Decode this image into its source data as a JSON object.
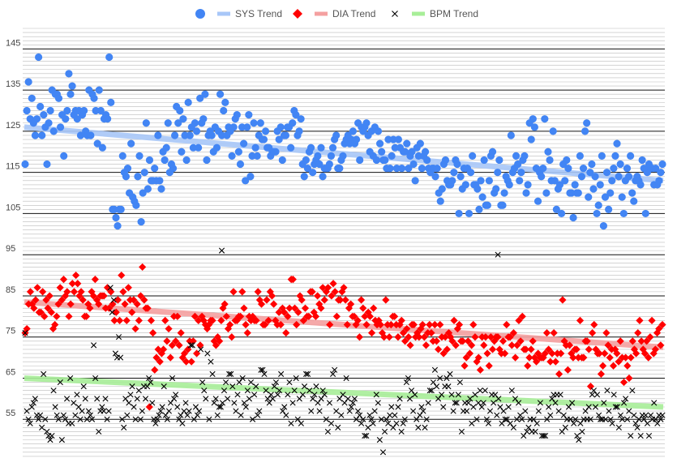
{
  "chart_data": {
    "type": "scatter",
    "title": "",
    "xlabel": "",
    "ylabel": "",
    "ylim": [
      45,
      150
    ],
    "y_ticks": [
      55,
      65,
      75,
      85,
      95,
      105,
      115,
      125,
      135,
      145
    ],
    "x_axis": "observation index (unlabeled)",
    "grid": "horizontal minor lines every 1 unit, major lines every 10 units",
    "legend_position": "top-center",
    "legend": [
      {
        "label": "SYS Trend",
        "marker": "circle",
        "marker_color": "#4285F4",
        "line_color": "#A8C7F8"
      },
      {
        "label": "DIA Trend",
        "marker": "diamond",
        "marker_color": "#FF0000",
        "line_color": "#F4A0A0"
      },
      {
        "label": "BPM Trend",
        "marker": "x",
        "marker_color": "#000000",
        "line_color": "#A8EE98"
      }
    ],
    "series": [
      {
        "name": "SYS",
        "marker": "circle",
        "color": "#4285F4",
        "trend": {
          "start": 126,
          "end": 113
        },
        "values": [
          117,
          130,
          137,
          128,
          133,
          127,
          124,
          128,
          143,
          131,
          124,
          129,
          126,
          117,
          127,
          130,
          135,
          125,
          134,
          134,
          133,
          126,
          129,
          119,
          128,
          130,
          139,
          134,
          136,
          129,
          130,
          128,
          130,
          124,
          129,
          130,
          125,
          124,
          135,
          124,
          134,
          133,
          130,
          122,
          135,
          130,
          121,
          128,
          129,
          128,
          143,
          132,
          106,
          106,
          104,
          102,
          106,
          106,
          119,
          115,
          114,
          116,
          110,
          122,
          109,
          108,
          107,
          114,
          119,
          103,
          110,
          115,
          127,
          111,
          118,
          113,
          113,
          116,
          113,
          124,
          113,
          111,
          120,
          118,
          121,
          127,
          115,
          117,
          116,
          124,
          131,
          127,
          130,
          120,
          128,
          124,
          118,
          132,
          124,
          126,
          121,
          127,
          125,
          121,
          133,
          127,
          128,
          134,
          118,
          124,
          125,
          124,
          120,
          126,
          121,
          125,
          134,
          124,
          130,
          132,
          124,
          126,
          125,
          119,
          126,
          128,
          129,
          120,
          117,
          126,
          122,
          113,
          126,
          129,
          114,
          119,
          127,
          121,
          119,
          124,
          127,
          123,
          123,
          125,
          121,
          121,
          119,
          120,
          120,
          120,
          125,
          123,
          126,
          118,
          124,
          124,
          126,
          126,
          121,
          127,
          130,
          129,
          124,
          125,
          128,
          117,
          114,
          118,
          116,
          120,
          121,
          115,
          117,
          118,
          119,
          117,
          121,
          114,
          116,
          116,
          116,
          117,
          119,
          121,
          123,
          124,
          116,
          116,
          118,
          119,
          122,
          123,
          124,
          122,
          123,
          125,
          122,
          123,
          127,
          118,
          126,
          125,
          126,
          127,
          124,
          120,
          125,
          119,
          126,
          118,
          125,
          122,
          120,
          118,
          118,
          116,
          123,
          116,
          119,
          123,
          121,
          116,
          123,
          121,
          116,
          120,
          120,
          122,
          116,
          119,
          120,
          117,
          113,
          121,
          119,
          122,
          116,
          119,
          120,
          118,
          116,
          115,
          116,
          116,
          114,
          116,
          110,
          108,
          111,
          117,
          118,
          113,
          112,
          112,
          113,
          115,
          118,
          117,
          105,
          114,
          111,
          116,
          112,
          116,
          105,
          115,
          119,
          112,
          112,
          111,
          106,
          113,
          109,
          118,
          107,
          107,
          113,
          119,
          120,
          110,
          111,
          115,
          118,
          107,
          107,
          110,
          114,
          113,
          112,
          124,
          115,
          116,
          119,
          117,
          113,
          115,
          118,
          119,
          110,
          112,
          127,
          123,
          128,
          126,
          116,
          108,
          115,
          114,
          116,
          128,
          110,
          120,
          118,
          113,
          125,
          113,
          106,
          111,
          112,
          105,
          117,
          113,
          118,
          116,
          110,
          110,
          104,
          112,
          110,
          110,
          119,
          114,
          116,
          125,
          127,
          109,
          115,
          117,
          111,
          114,
          105,
          107,
          112,
          119,
          102,
          109,
          115,
          106,
          110,
          113,
          116,
          119,
          122,
          114,
          117,
          109,
          105,
          113,
          116,
          114,
          119,
          110,
          108,
          113,
          114,
          113,
          112,
          118,
          116,
          105,
          115,
          117,
          116,
          116,
          112,
          116,
          112,
          113,
          115,
          117
        ]
      },
      {
        "name": "DIA",
        "marker": "diamond",
        "color": "#FF0000",
        "trend": {
          "start": 83.5,
          "end": 72.5
        },
        "values": [
          76,
          77,
          83,
          86,
          83,
          82,
          84,
          87,
          81,
          81,
          86,
          80,
          84,
          82,
          85,
          81,
          77,
          78,
          80,
          83,
          87,
          84,
          89,
          85,
          86,
          80,
          83,
          88,
          86,
          90,
          88,
          85,
          86,
          84,
          80,
          80,
          83,
          82,
          86,
          85,
          89,
          84,
          83,
          85,
          85,
          85,
          82,
          87,
          82,
          86,
          83,
          79,
          81,
          84,
          79,
          90,
          86,
          83,
          79,
          87,
          84,
          81,
          84,
          77,
          83,
          79,
          85,
          92,
          84,
          82,
          82,
          58,
          79,
          76,
          67,
          70,
          72,
          69,
          71,
          72,
          79,
          74,
          77,
          70,
          73,
          80,
          74,
          80,
          73,
          76,
          70,
          71,
          69,
          72,
          74,
          69,
          74,
          80,
          71,
          79,
          73,
          80,
          79,
          78,
          77,
          78,
          79,
          79,
          74,
          73,
          75,
          74,
          79,
          82,
          83,
          80,
          77,
          78,
          75,
          86,
          79,
          79,
          80,
          80,
          86,
          82,
          78,
          76,
          80,
          79,
          80,
          79,
          79,
          86,
          84,
          83,
          78,
          78,
          84,
          79,
          86,
          85,
          83,
          79,
          78,
          81,
          78,
          82,
          81,
          76,
          80,
          82,
          89,
          89,
          82,
          78,
          81,
          85,
          84,
          79,
          82,
          80,
          80,
          86,
          86,
          81,
          80,
          85,
          83,
          82,
          87,
          84,
          86,
          87,
          78,
          85,
          88,
          86,
          80,
          84,
          84,
          86,
          87,
          84,
          78,
          82,
          83,
          80,
          80,
          78,
          79,
          75,
          84,
          82,
          80,
          78,
          81,
          80,
          76,
          82,
          79,
          78,
          79,
          78,
          76,
          75,
          84,
          78,
          75,
          78,
          80,
          80,
          78,
          75,
          78,
          79,
          76,
          74,
          77,
          75,
          73,
          78,
          78,
          75,
          76,
          75,
          77,
          78,
          75,
          73,
          76,
          78,
          76,
          74,
          78,
          74,
          72,
          78,
          75,
          71,
          75,
          72,
          76,
          75,
          74,
          79,
          73,
          77,
          78,
          74,
          74,
          68,
          70,
          74,
          71,
          73,
          78,
          75,
          69,
          70,
          67,
          75,
          73,
          75,
          71,
          68,
          75,
          72,
          74,
          75,
          75,
          72,
          71,
          74,
          71,
          78,
          75,
          75,
          73,
          76,
          70,
          73,
          79,
          74,
          80,
          72,
          72,
          68,
          70,
          72,
          74,
          70,
          69,
          71,
          70,
          70,
          70,
          71,
          76,
          72,
          69,
          71,
          76,
          69,
          71,
          66,
          71,
          84,
          74,
          73,
          67,
          73,
          71,
          70,
          72,
          72,
          70,
          79,
          70,
          70,
          74,
          74,
          72,
          63,
          76,
          78,
          72,
          71,
          71,
          66,
          68,
          71,
          76,
          73,
          70,
          72,
          68,
          72,
          71,
          69,
          74,
          70,
          64,
          70,
          68,
          65,
          70,
          74,
          72,
          71,
          76,
          79,
          74,
          72,
          71,
          74,
          70,
          75,
          79,
          71,
          72,
          76,
          77,
          73,
          78
        ]
      },
      {
        "name": "BPM",
        "marker": "x",
        "color": "#000000",
        "trend": {
          "start": 65,
          "end": 58
        },
        "values": [
          76,
          57,
          55,
          54,
          58,
          59,
          60,
          56,
          55,
          56,
          53,
          66,
          55,
          52,
          51,
          50,
          51,
          62,
          58,
          56,
          55,
          64,
          50,
          56,
          55,
          60,
          54,
          65,
          54,
          59,
          56,
          61,
          58,
          55,
          57,
          63,
          60,
          55,
          57,
          56,
          55,
          73,
          65,
          60,
          52,
          57,
          58,
          57,
          60,
          55,
          57,
          87,
          81,
          84,
          71,
          70,
          75,
          70,
          55,
          53,
          60,
          56,
          59,
          61,
          63,
          58,
          55,
          60,
          62,
          55,
          57,
          63,
          60,
          63,
          65,
          64,
          59,
          55,
          54,
          55,
          56,
          57,
          58,
          63,
          56,
          55,
          57,
          59,
          65,
          60,
          61,
          58,
          55,
          56,
          54,
          57,
          59,
          56,
          57,
          73,
          73,
          55,
          58,
          56,
          57,
          72,
          64,
          62,
          60,
          71,
          55,
          69,
          66,
          59,
          60,
          56,
          58,
          58,
          59,
          62,
          64,
          60,
          66,
          66,
          63,
          59,
          57,
          61,
          64,
          56,
          65,
          59,
          58,
          62,
          60,
          64,
          55,
          61,
          63,
          56,
          57,
          67,
          67,
          66,
          62,
          60,
          59,
          61,
          60,
          63,
          64,
          61,
          62,
          66,
          57,
          58,
          56,
          61,
          64,
          54,
          59,
          62,
          65,
          55,
          60,
          54,
          61,
          63,
          66,
          66,
          62,
          57,
          60,
          61,
          63,
          59,
          57,
          60,
          62,
          61,
          55,
          52,
          59,
          54,
          66,
          67,
          57,
          53,
          60,
          56,
          61,
          59,
          65,
          60,
          57,
          58,
          59,
          60,
          55,
          57,
          56,
          54,
          55,
          51,
          51,
          53,
          56,
          55,
          54,
          57,
          61,
          59,
          50,
          55,
          47,
          52,
          55,
          54,
          56,
          58,
          53,
          56,
          54,
          58,
          60,
          52,
          54,
          55,
          64,
          65,
          60,
          62,
          57,
          61,
          55,
          53,
          56,
          58,
          57,
          53,
          55,
          59,
          62,
          62,
          64,
          67,
          63,
          60,
          65,
          61,
          58,
          63,
          65,
          63,
          66,
          61,
          57,
          59,
          59,
          61,
          64,
          52,
          57,
          59,
          57,
          59,
          60,
          54,
          58,
          61,
          55,
          59,
          62,
          58,
          59,
          62,
          55,
          54,
          57,
          61,
          59,
          61,
          56,
          60,
          58,
          54,
          57,
          55,
          55,
          58,
          54,
          62,
          53,
          60,
          55,
          59,
          56,
          55,
          51,
          57,
          52,
          53,
          55,
          52,
          55,
          52,
          54,
          57,
          59,
          51,
          51,
          51,
          55,
          58,
          56,
          60,
          61,
          59,
          61,
          57,
          61,
          52,
          56,
          53,
          55,
          58,
          55,
          59,
          54,
          55,
          51,
          50,
          54,
          52,
          55,
          57,
          55,
          58,
          55,
          61,
          62,
          58,
          61,
          56,
          55,
          55,
          59,
          55,
          62,
          57,
          55,
          54,
          61,
          58,
          58,
          53,
          56,
          55,
          59,
          60,
          55,
          57,
          51,
          62,
          56,
          54,
          53,
          55,
          51,
          56,
          55,
          56,
          54,
          51,
          56,
          55,
          59,
          55,
          54,
          56,
          55,
          56
        ]
      }
    ],
    "outliers": [
      {
        "series": "BPM",
        "value": 96
      },
      {
        "series": "BPM",
        "value": 95
      }
    ]
  }
}
